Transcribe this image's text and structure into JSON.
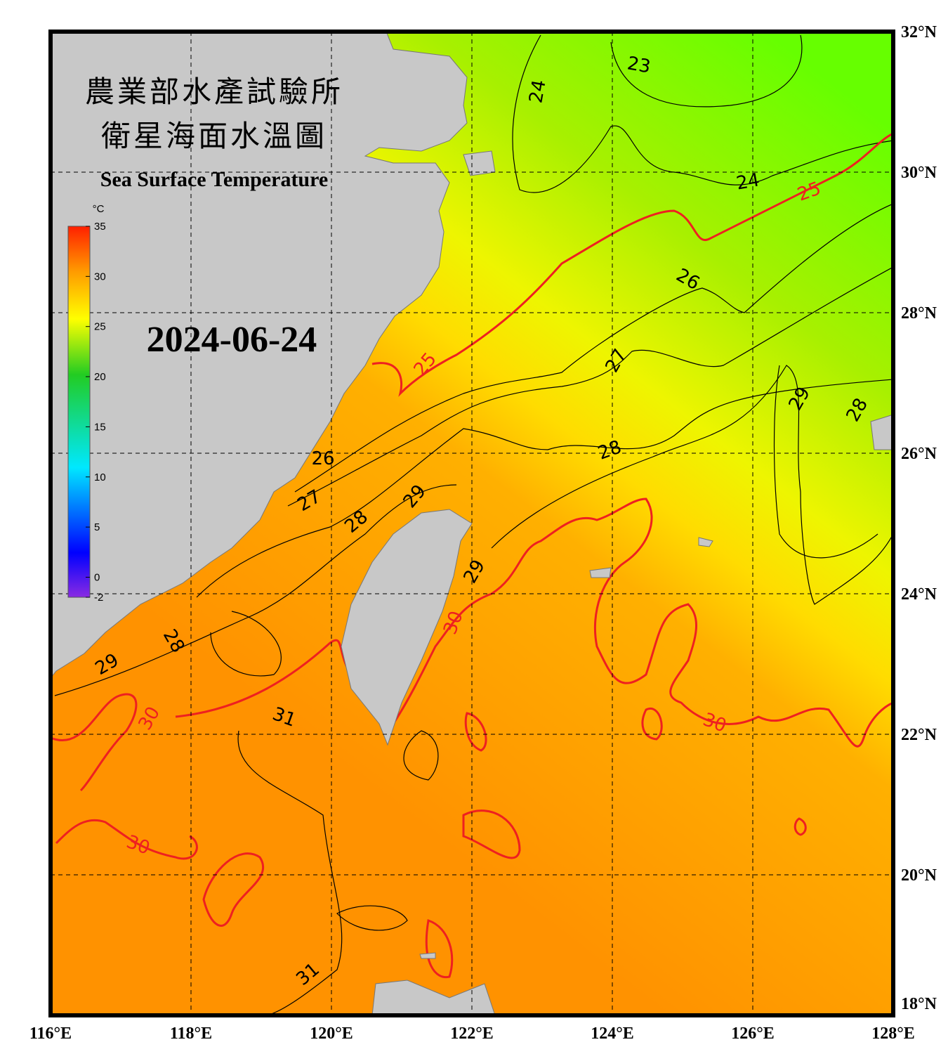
{
  "title_zh": [
    "農業部水產試驗所",
    "衛星海面水溫圖"
  ],
  "title_en": "Sea Surface Temperature",
  "date": "2024-06-24",
  "colorbar": {
    "unit": "°C",
    "range": [
      -2,
      35
    ],
    "ticks": [
      -2,
      0,
      5,
      10,
      15,
      20,
      25,
      30,
      35
    ]
  },
  "xlim": [
    116,
    128
  ],
  "ylim": [
    18,
    32
  ],
  "lon_ticks": [
    {
      "value": 116,
      "label": "116°E"
    },
    {
      "value": 118,
      "label": "118°E"
    },
    {
      "value": 120,
      "label": "120°E"
    },
    {
      "value": 122,
      "label": "122°E"
    },
    {
      "value": 124,
      "label": "124°E"
    },
    {
      "value": 126,
      "label": "126°E"
    },
    {
      "value": 128,
      "label": "128°E"
    }
  ],
  "lat_ticks": [
    {
      "value": 18,
      "label": "18°N"
    },
    {
      "value": 20,
      "label": "20°N"
    },
    {
      "value": 22,
      "label": "22°N"
    },
    {
      "value": 24,
      "label": "24°N"
    },
    {
      "value": 26,
      "label": "26°N"
    },
    {
      "value": 28,
      "label": "28°N"
    },
    {
      "value": 30,
      "label": "30°N"
    },
    {
      "value": 32,
      "label": "32°N"
    }
  ],
  "contour_labels": [
    23,
    24,
    24,
    25,
    25,
    26,
    26,
    27,
    27,
    28,
    28,
    28,
    28,
    29,
    29,
    29,
    29,
    30,
    30,
    30,
    30,
    31,
    31
  ]
}
